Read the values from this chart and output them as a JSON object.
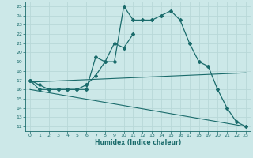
{
  "xlabel": "Humidex (Indice chaleur)",
  "background_color": "#cce8e8",
  "grid_color": "#aacccc",
  "line_color": "#1a6b6b",
  "xlim": [
    -0.5,
    23.5
  ],
  "ylim": [
    11.5,
    25.5
  ],
  "xticks": [
    0,
    1,
    2,
    3,
    4,
    5,
    6,
    7,
    8,
    9,
    10,
    11,
    12,
    13,
    14,
    15,
    16,
    17,
    18,
    19,
    20,
    21,
    22,
    23
  ],
  "yticks": [
    12,
    13,
    14,
    15,
    16,
    17,
    18,
    19,
    20,
    21,
    22,
    23,
    24,
    25
  ],
  "s0x": [
    0,
    1,
    2,
    3,
    4,
    5,
    6,
    7,
    8,
    9,
    10,
    11,
    12,
    13,
    14,
    15,
    16,
    17,
    18,
    19,
    20,
    21,
    22,
    23
  ],
  "s0y": [
    17,
    16,
    16,
    16,
    16,
    16,
    16,
    19.5,
    19,
    19,
    25,
    23.5,
    23.5,
    23.5,
    24,
    24.5,
    23.5,
    21,
    19,
    18.5,
    16,
    14,
    12.5,
    12
  ],
  "s1x": [
    0,
    1,
    2,
    3,
    4,
    5,
    6,
    7,
    8,
    9,
    10,
    11
  ],
  "s1y": [
    17,
    16.5,
    16,
    16,
    16,
    16,
    16.5,
    17.5,
    19,
    21,
    20.5,
    22
  ],
  "s2x": [
    0,
    23
  ],
  "s2y": [
    16.8,
    17.8
  ],
  "s3x": [
    0,
    23
  ],
  "s3y": [
    16,
    12
  ]
}
